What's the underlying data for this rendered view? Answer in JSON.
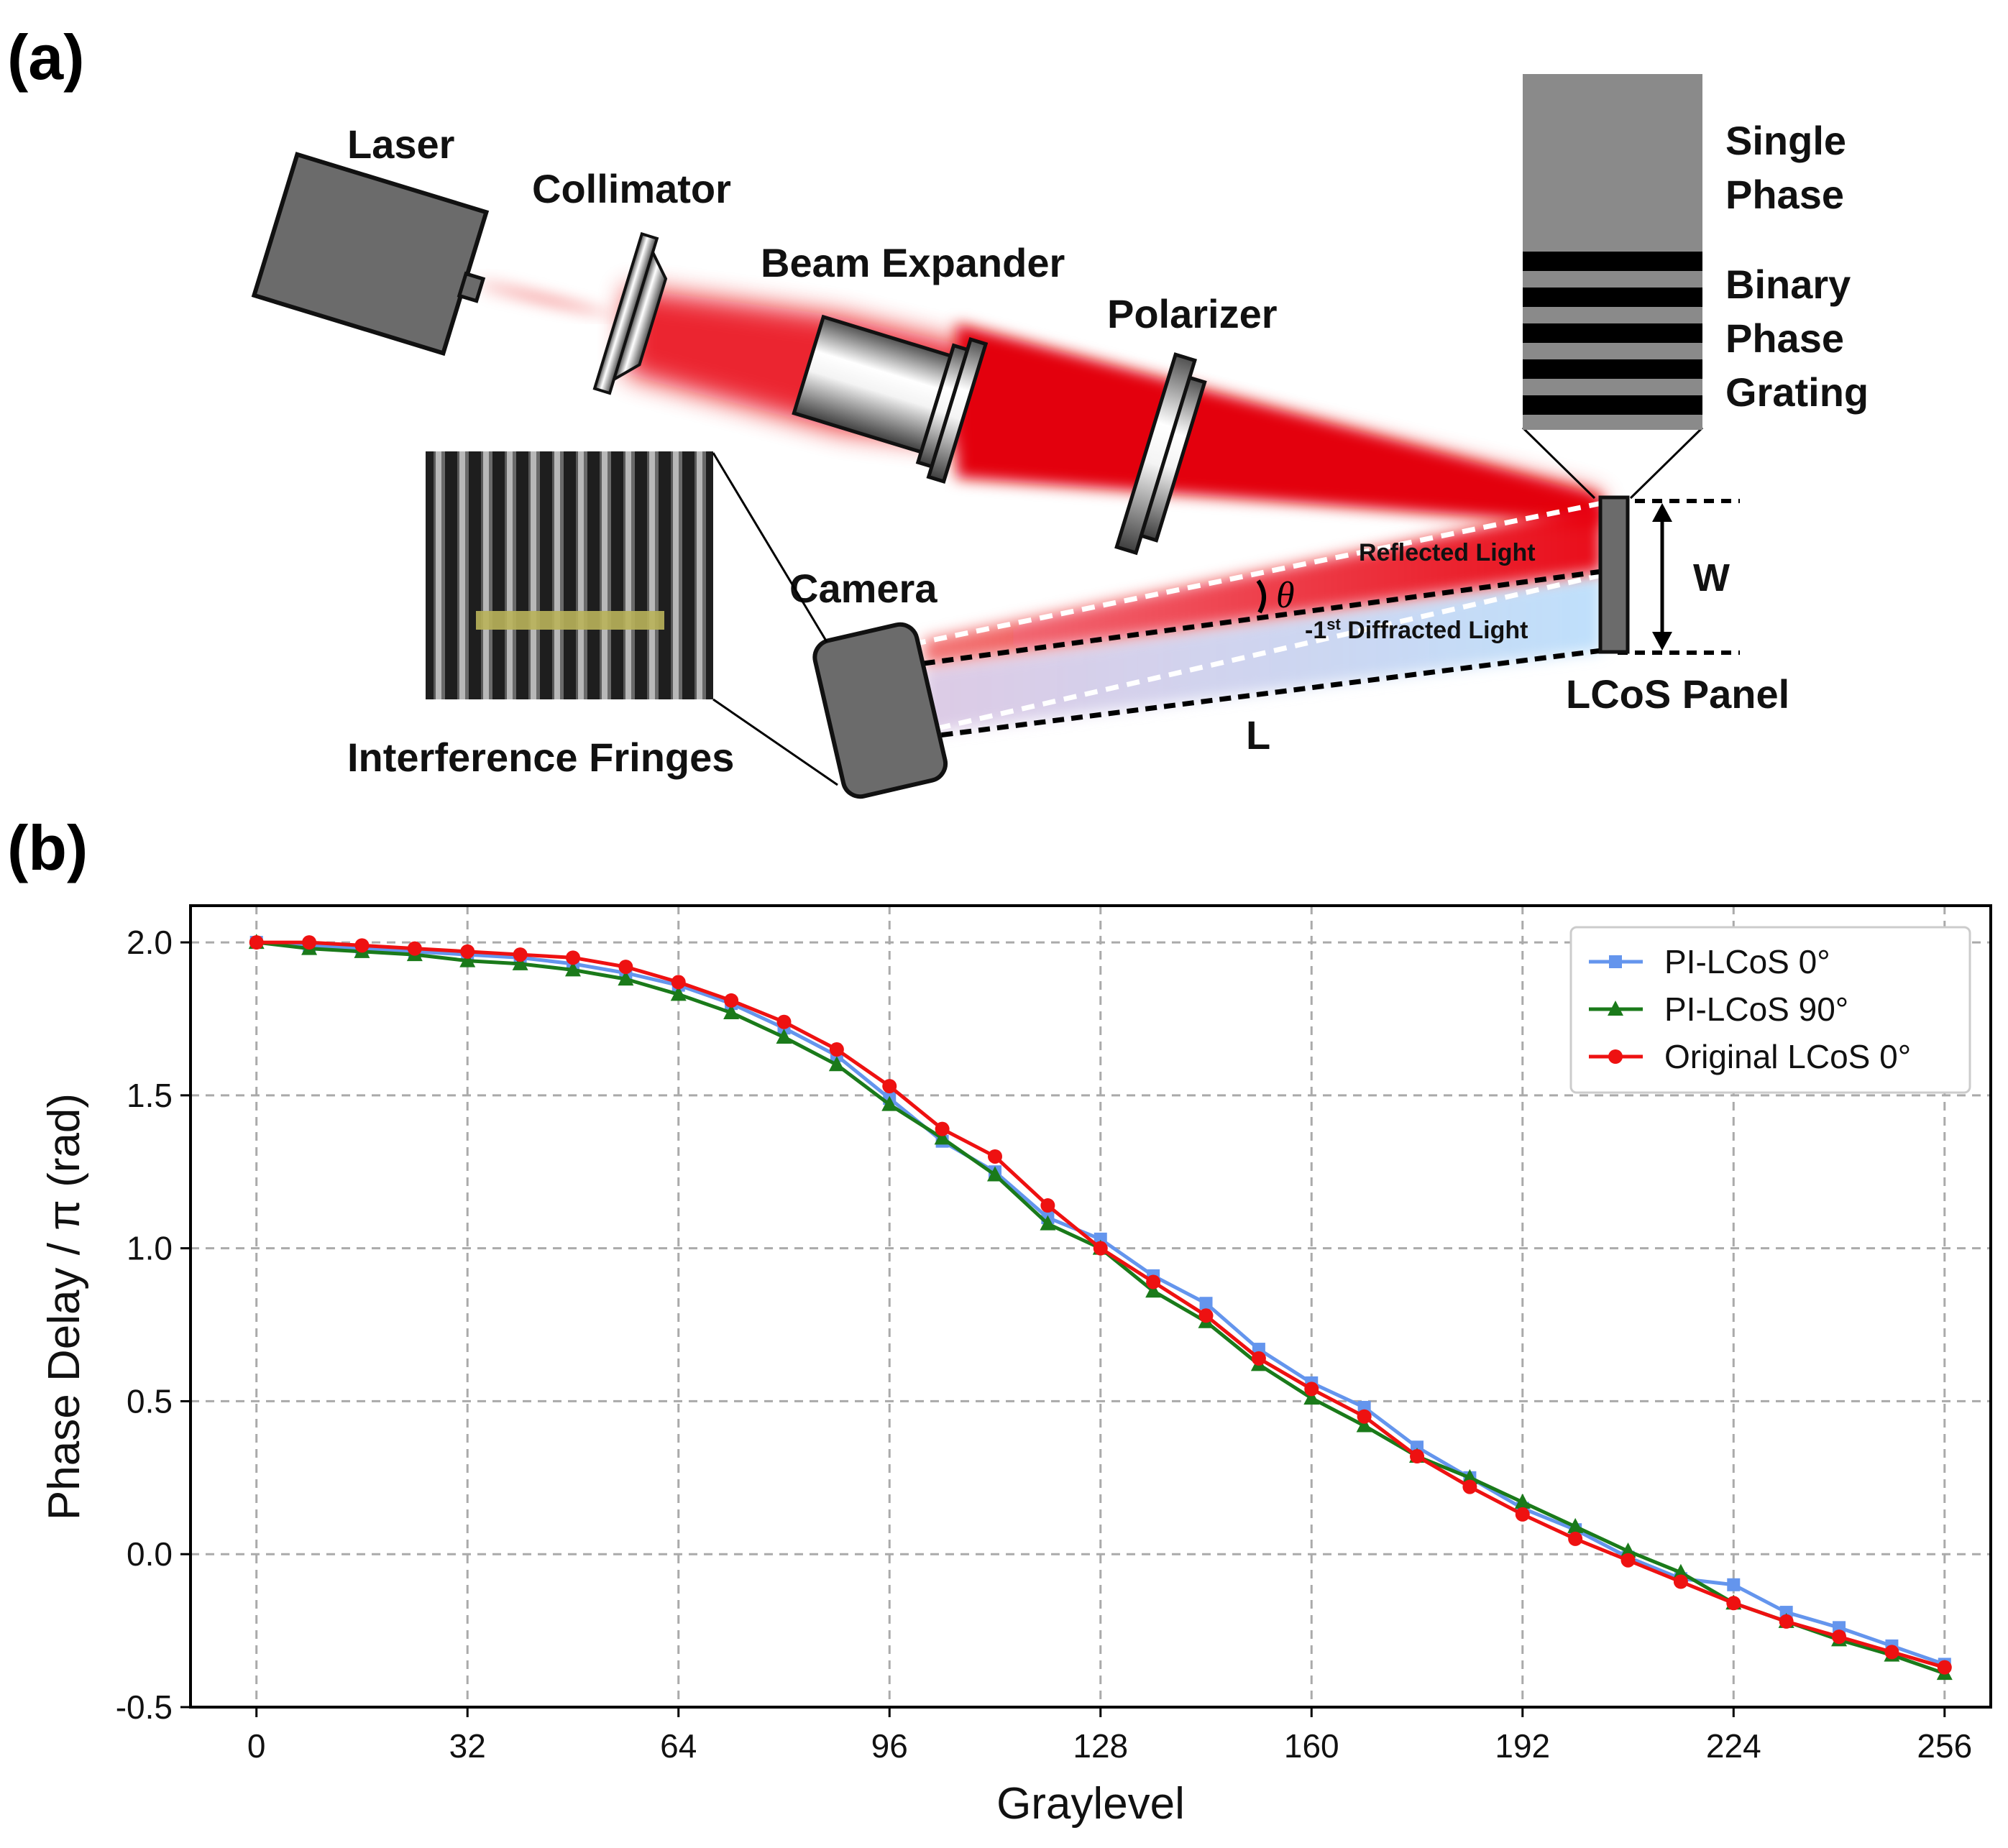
{
  "panel_labels": {
    "a": "(a)",
    "b": "(b)"
  },
  "setup": {
    "laser": "Laser",
    "collimator": "Collimator",
    "beam_expander": "Beam Expander",
    "polarizer": "Polarizer",
    "camera": "Camera",
    "interference_fringes": "Interference Fringes",
    "single_phase": [
      "Single",
      "Phase"
    ],
    "binary_phase_grating": [
      "Binary",
      "Phase",
      "Grating"
    ],
    "reflected_light": "Reflected Light",
    "diffracted_prefix": "-1",
    "diffracted_sup": "st",
    "diffracted_suffix": " Diffracted Light",
    "theta": "θ",
    "w": "W",
    "l": "L",
    "lcos_panel": "LCoS Panel"
  },
  "colors": {
    "beam_red": "#e8000b",
    "diffracted_blue": "#bfe0fb",
    "component_gray": "#6b6b6b",
    "series_blue": "#6495ed",
    "series_green": "#1a7a1a",
    "series_red": "#ee1111"
  },
  "chart_data": {
    "type": "line",
    "xlabel": "Graylevel",
    "ylabel": "Phase Delay / π (rad)",
    "xlim": [
      -10,
      263
    ],
    "ylim": [
      -0.5,
      2.12
    ],
    "xticks": [
      0,
      32,
      64,
      96,
      128,
      160,
      192,
      224,
      256
    ],
    "yticks": [
      2.0,
      1.5,
      1.0,
      0.5,
      0.0,
      -0.5
    ],
    "ytick_labels": [
      "2.0",
      "1.5",
      "1.0",
      "0.5",
      "0.0",
      "-0.5"
    ],
    "grid": true,
    "legend_position": "top-right",
    "x": [
      0,
      8,
      16,
      24,
      32,
      40,
      48,
      56,
      64,
      72,
      80,
      88,
      96,
      104,
      112,
      120,
      128,
      136,
      144,
      152,
      160,
      168,
      176,
      184,
      192,
      200,
      208,
      216,
      224,
      232,
      240,
      248,
      256
    ],
    "series": [
      {
        "name": "PI-LCoS 0°",
        "marker": "square",
        "color": "#6495ed",
        "values": [
          2.0,
          1.99,
          1.98,
          1.97,
          1.96,
          1.95,
          1.93,
          1.9,
          1.86,
          1.8,
          1.72,
          1.63,
          1.49,
          1.35,
          1.25,
          1.1,
          1.03,
          0.91,
          0.82,
          0.67,
          0.56,
          0.48,
          0.35,
          0.25,
          0.15,
          0.08,
          -0.01,
          -0.08,
          -0.1,
          -0.19,
          -0.24,
          -0.3,
          -0.36
        ]
      },
      {
        "name": "PI-LCoS 90°",
        "marker": "triangle",
        "color": "#1a7a1a",
        "values": [
          2.0,
          1.98,
          1.97,
          1.96,
          1.94,
          1.93,
          1.91,
          1.88,
          1.83,
          1.77,
          1.69,
          1.6,
          1.47,
          1.36,
          1.24,
          1.08,
          1.0,
          0.86,
          0.76,
          0.62,
          0.51,
          0.42,
          0.32,
          0.25,
          0.17,
          0.09,
          0.01,
          -0.06,
          -0.16,
          -0.22,
          -0.28,
          -0.33,
          -0.39
        ]
      },
      {
        "name": "Original LCoS 0°",
        "marker": "circle",
        "color": "#ee1111",
        "values": [
          2.0,
          2.0,
          1.99,
          1.98,
          1.97,
          1.96,
          1.95,
          1.92,
          1.87,
          1.81,
          1.74,
          1.65,
          1.53,
          1.39,
          1.3,
          1.14,
          1.0,
          0.89,
          0.78,
          0.64,
          0.54,
          0.45,
          0.32,
          0.22,
          0.13,
          0.05,
          -0.02,
          -0.09,
          -0.16,
          -0.22,
          -0.27,
          -0.32,
          -0.37
        ]
      }
    ]
  }
}
